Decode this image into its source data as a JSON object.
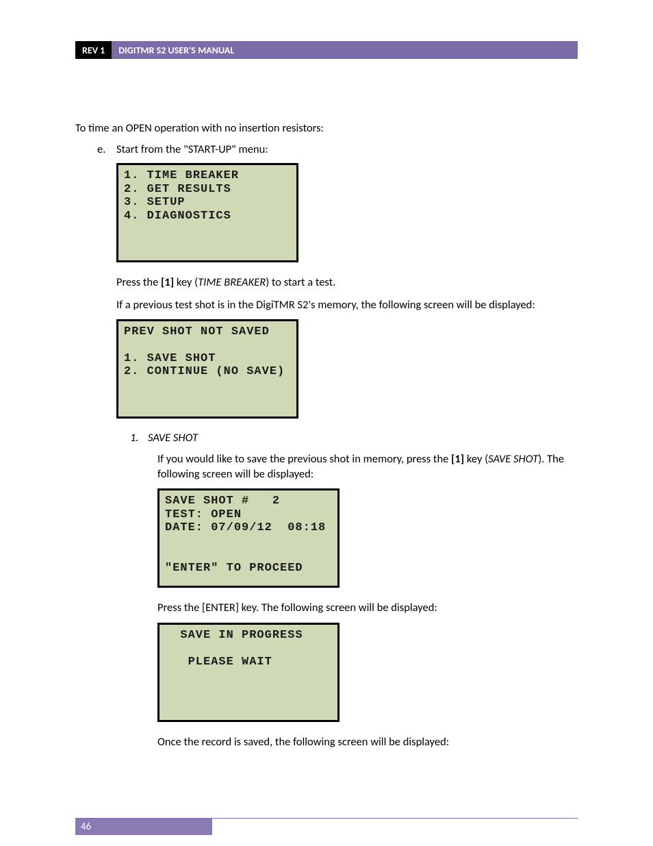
{
  "header": {
    "rev": "REV 1",
    "title": "DIGITMR S2 USER'S MANUAL"
  },
  "intro": "To time an OPEN operation with no insertion resistors:",
  "step_e": {
    "marker": "e.",
    "text": "Start from the \"START-UP\" menu:"
  },
  "lcd1": "1. TIME BREAKER\n2. GET RESULTS\n3. SETUP\n4. DIAGNOSTICS\n\n\n",
  "para_press1_a": "Press the ",
  "para_press1_key": "[1]",
  "para_press1_b": " key (",
  "para_press1_term": "TIME BREAKER",
  "para_press1_c": ") to start a test.",
  "para_prev": "If a previous test shot is in the DigiTMR S2's memory, the following screen will be displayed:",
  "lcd2": "PREV SHOT NOT SAVED\n\n1. SAVE SHOT\n2. CONTINUE (NO SAVE)\n\n\n",
  "step_1": {
    "marker": "1.",
    "label": "SAVE SHOT"
  },
  "para_save_a": "If you would like to save the previous shot in memory, press the ",
  "para_save_key": "[1]",
  "para_save_b": " key (",
  "para_save_term": "SAVE SHOT",
  "para_save_c": "). The following screen will be displayed:",
  "lcd3": "SAVE SHOT #   2\nTEST: OPEN\nDATE: 07/09/12  08:18\n\n\n\"ENTER\" TO PROCEED\n",
  "para_enter": "Press the [ENTER] key. The following screen will be displayed:",
  "lcd4": "  SAVE IN PROGRESS\n\n   PLEASE WAIT\n\n\n\n",
  "para_once": "Once the record is saved, the following screen will be displayed:",
  "page_number": "46",
  "colors": {
    "header_purple": "#7b6ca7",
    "footer_purple": "#8b7bb5",
    "lcd_bg": "#cfd9b5",
    "black": "#000000",
    "white": "#ffffff"
  }
}
